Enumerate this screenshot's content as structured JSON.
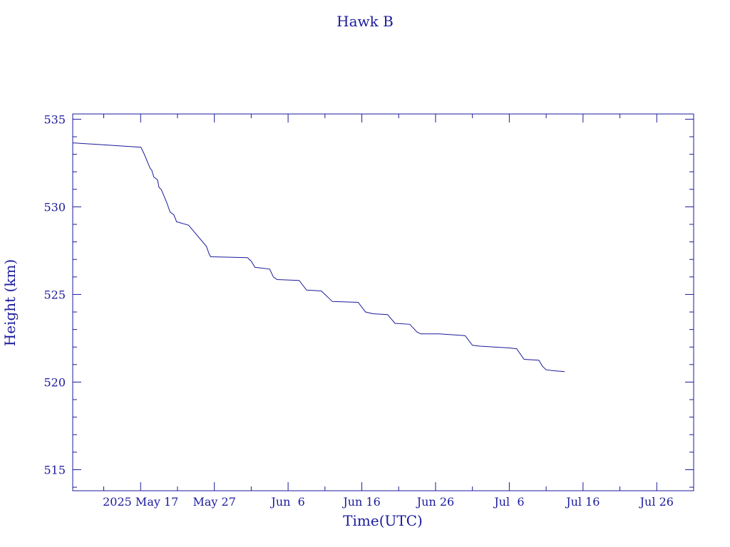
{
  "colors": {
    "ink": "#1a1a9c",
    "background": "#ffffff"
  },
  "chart_data": {
    "type": "line",
    "title": "Hawk B",
    "xlabel": "Time(UTC)",
    "ylabel": "Height (km)",
    "grid": false,
    "legend": "none",
    "xlim": [
      "2025-05-07T19:00",
      "2025-07-31T00:00"
    ],
    "ylim": [
      513.8,
      535.3
    ],
    "x_ticks": [
      {
        "date": "2025-05-17",
        "label": "2025 May 17"
      },
      {
        "date": "2025-05-27",
        "label": "May 27"
      },
      {
        "date": "2025-06-06",
        "label": "Jun  6"
      },
      {
        "date": "2025-06-16",
        "label": "Jun 16"
      },
      {
        "date": "2025-06-26",
        "label": "Jun 26"
      },
      {
        "date": "2025-07-06",
        "label": "Jul  6"
      },
      {
        "date": "2025-07-16",
        "label": "Jul 16"
      },
      {
        "date": "2025-07-26",
        "label": "Jul 26"
      }
    ],
    "x_minor_step_days": 5,
    "y_ticks": [
      {
        "value": 515,
        "label": "515"
      },
      {
        "value": 520,
        "label": "520"
      },
      {
        "value": 525,
        "label": "525"
      },
      {
        "value": 530,
        "label": "530"
      },
      {
        "value": 535,
        "label": "535"
      }
    ],
    "y_minor_step": 1,
    "series": [
      {
        "color": "#1a1a9c",
        "points": [
          [
            "2025-05-07T20:00",
            533.65
          ],
          [
            "2025-05-17T01:00",
            533.4
          ],
          [
            "2025-05-17T12:00",
            533.0
          ],
          [
            "2025-05-18T07:00",
            532.2
          ],
          [
            "2025-05-18T12:00",
            532.1
          ],
          [
            "2025-05-18T19:00",
            531.7
          ],
          [
            "2025-05-19T07:00",
            531.55
          ],
          [
            "2025-05-19T12:00",
            531.1
          ],
          [
            "2025-05-19T19:00",
            531.0
          ],
          [
            "2025-05-20T07:00",
            530.5
          ],
          [
            "2025-05-20T14:00",
            530.2
          ],
          [
            "2025-05-21T00:00",
            529.7
          ],
          [
            "2025-05-21T12:00",
            529.55
          ],
          [
            "2025-05-21T21:00",
            529.15
          ],
          [
            "2025-05-23T12:00",
            528.95
          ],
          [
            "2025-05-25T22:00",
            527.75
          ],
          [
            "2025-05-26T07:00",
            527.3
          ],
          [
            "2025-05-26T12:00",
            527.15
          ],
          [
            "2025-05-31T12:00",
            527.1
          ],
          [
            "2025-06-01T00:00",
            526.9
          ],
          [
            "2025-06-01T12:00",
            526.55
          ],
          [
            "2025-06-03T12:00",
            526.45
          ],
          [
            "2025-06-04T00:00",
            526.0
          ],
          [
            "2025-06-04T12:00",
            525.85
          ],
          [
            "2025-06-07T12:00",
            525.8
          ],
          [
            "2025-06-08T12:00",
            525.25
          ],
          [
            "2025-06-10T12:00",
            525.2
          ],
          [
            "2025-06-11T12:00",
            524.8
          ],
          [
            "2025-06-12T00:00",
            524.6
          ],
          [
            "2025-06-15T12:00",
            524.55
          ],
          [
            "2025-06-16T12:00",
            524.0
          ],
          [
            "2025-06-17T12:00",
            523.9
          ],
          [
            "2025-06-19T12:00",
            523.85
          ],
          [
            "2025-06-20T12:00",
            523.35
          ],
          [
            "2025-06-22T12:00",
            523.3
          ],
          [
            "2025-06-23T12:00",
            522.85
          ],
          [
            "2025-06-24T00:00",
            522.75
          ],
          [
            "2025-06-26T12:00",
            522.75
          ],
          [
            "2025-06-30T00:00",
            522.65
          ],
          [
            "2025-07-01T00:00",
            522.1
          ],
          [
            "2025-07-02T00:00",
            522.05
          ],
          [
            "2025-07-06T00:00",
            521.95
          ],
          [
            "2025-07-07T00:00",
            521.9
          ],
          [
            "2025-07-08T00:00",
            521.3
          ],
          [
            "2025-07-10T00:00",
            521.25
          ],
          [
            "2025-07-10T12:00",
            520.9
          ],
          [
            "2025-07-11T00:00",
            520.7
          ],
          [
            "2025-07-12T00:00",
            520.65
          ],
          [
            "2025-07-13T12:00",
            520.6
          ]
        ]
      }
    ]
  }
}
